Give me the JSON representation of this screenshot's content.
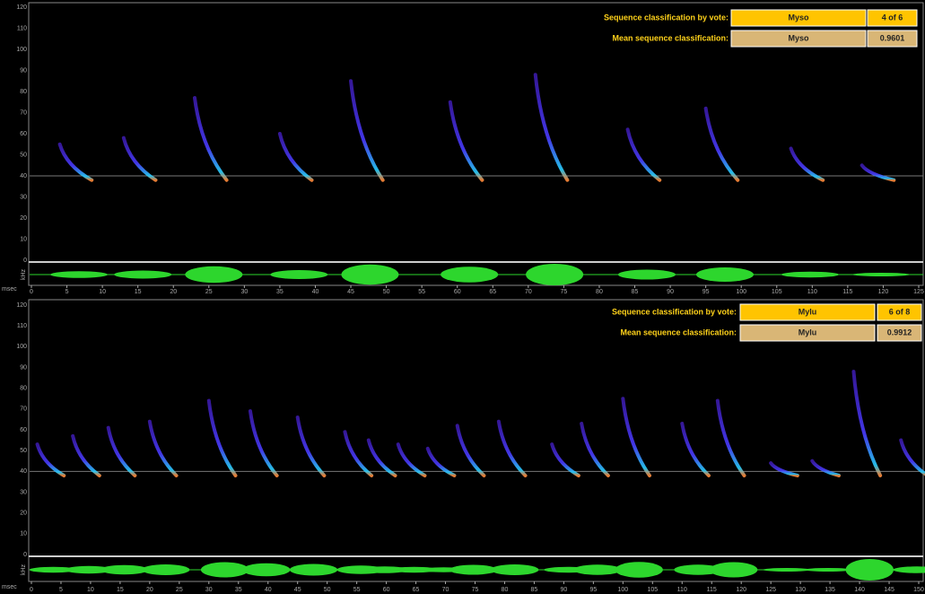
{
  "panels": [
    {
      "yaxis": {
        "label": "kHz",
        "ticks": [
          0,
          10,
          20,
          30,
          40,
          50,
          60,
          70,
          80,
          90,
          100,
          110,
          120
        ]
      },
      "xaxis": {
        "label": "msec",
        "ticks": [
          0,
          5,
          10,
          15,
          20,
          25,
          30,
          35,
          40,
          45,
          50,
          55,
          60,
          65,
          70,
          75,
          80,
          85,
          90,
          95,
          100,
          105,
          110,
          115,
          120,
          125
        ]
      },
      "vote": {
        "label": "Sequence classification by vote:",
        "species": "Myso",
        "count": "4 of 6"
      },
      "mean": {
        "label": "Mean sequence classification:",
        "species": "Myso",
        "score": "0.9601"
      }
    },
    {
      "yaxis": {
        "label": "kHz",
        "ticks": [
          0,
          10,
          20,
          30,
          40,
          50,
          60,
          70,
          80,
          90,
          100,
          110,
          120
        ]
      },
      "xaxis": {
        "label": "msec",
        "ticks": [
          0,
          5,
          10,
          15,
          20,
          25,
          30,
          35,
          40,
          45,
          50,
          55,
          60,
          65,
          70,
          75,
          80,
          85,
          90,
          95,
          100,
          105,
          110,
          115,
          120,
          125,
          130,
          135,
          140,
          145,
          150
        ]
      },
      "vote": {
        "label": "Sequence classification by vote:",
        "species": "Mylu",
        "count": "6 of 8"
      },
      "mean": {
        "label": "Mean sequence classification:",
        "species": "Mylu",
        "score": "0.9912"
      }
    }
  ]
}
